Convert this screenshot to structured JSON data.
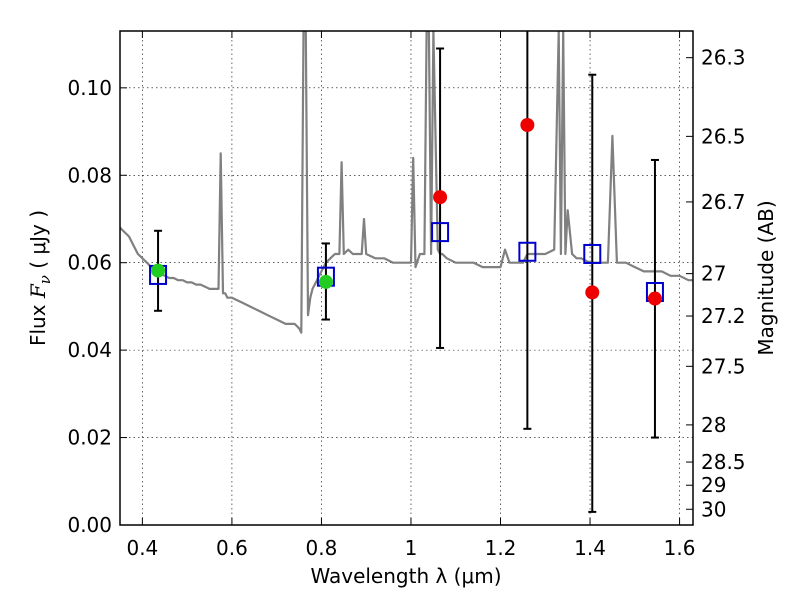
{
  "chart_data": {
    "type": "scatter",
    "xlabel": "Wavelength  λ (μm)",
    "ylabel_prefix": "Flux ",
    "ylabel_var": "F",
    "ylabel_sub": "ν",
    "ylabel_suffix": "  ( μJy )",
    "y2label": "Magnitude (AB)",
    "xlim": [
      0.35,
      1.63
    ],
    "ylim": [
      0.0,
      0.113
    ],
    "grid": true,
    "x_ticks": [
      0.4,
      0.6,
      0.8,
      1.0,
      1.2,
      1.4,
      1.6
    ],
    "x_tick_labels": [
      "0.4",
      "0.6",
      "0.8",
      "1",
      "1.2",
      "1.4",
      "1.6"
    ],
    "y_ticks": [
      0.0,
      0.02,
      0.04,
      0.06,
      0.08,
      0.1
    ],
    "y_tick_labels": [
      "0.00",
      "0.02",
      "0.04",
      "0.06",
      "0.08",
      "0.10"
    ],
    "y2_ticks": [
      {
        "flux": 0.1069,
        "label": "26.3"
      },
      {
        "flux": 0.0889,
        "label": "26.5"
      },
      {
        "flux": 0.0739,
        "label": "26.7"
      },
      {
        "flux": 0.0575,
        "label": "27"
      },
      {
        "flux": 0.0478,
        "label": "27.2"
      },
      {
        "flux": 0.0363,
        "label": "27.5"
      },
      {
        "flux": 0.0229,
        "label": "28"
      },
      {
        "flux": 0.0144,
        "label": "28.5"
      },
      {
        "flux": 0.0091,
        "label": "29"
      },
      {
        "flux": 0.0036,
        "label": "30"
      }
    ],
    "colors": {
      "spectrum": "#808080",
      "model_box": "#0000cc",
      "green_point": "#22cc22",
      "red_point": "#ee0000",
      "errorbar": "#000000"
    },
    "series": [
      {
        "kind": "spectrum",
        "x": [
          0.35,
          0.36,
          0.37,
          0.38,
          0.39,
          0.4,
          0.41,
          0.42,
          0.43,
          0.44,
          0.45,
          0.46,
          0.47,
          0.48,
          0.49,
          0.5,
          0.51,
          0.52,
          0.53,
          0.54,
          0.55,
          0.56,
          0.57,
          0.575,
          0.58,
          0.585,
          0.59,
          0.6,
          0.62,
          0.64,
          0.66,
          0.68,
          0.7,
          0.72,
          0.74,
          0.75,
          0.755,
          0.76,
          0.765,
          0.77,
          0.775,
          0.78,
          0.785,
          0.79,
          0.8,
          0.81,
          0.82,
          0.83,
          0.84,
          0.845,
          0.85,
          0.86,
          0.87,
          0.88,
          0.89,
          0.895,
          0.9,
          0.92,
          0.94,
          0.96,
          0.98,
          1.0,
          1.005,
          1.01,
          1.02,
          1.03,
          1.035,
          1.04,
          1.045,
          1.05,
          1.06,
          1.065,
          1.07,
          1.08,
          1.1,
          1.12,
          1.14,
          1.16,
          1.18,
          1.2,
          1.21,
          1.22,
          1.24,
          1.25,
          1.26,
          1.28,
          1.3,
          1.32,
          1.33,
          1.335,
          1.34,
          1.345,
          1.35,
          1.36,
          1.37,
          1.38,
          1.4,
          1.42,
          1.44,
          1.45,
          1.46,
          1.48,
          1.5,
          1.52,
          1.54,
          1.56,
          1.58,
          1.6,
          1.62,
          1.63
        ],
        "y": [
          0.068,
          0.067,
          0.066,
          0.064,
          0.062,
          0.061,
          0.06,
          0.059,
          0.058,
          0.0575,
          0.057,
          0.0565,
          0.0565,
          0.056,
          0.056,
          0.0555,
          0.0555,
          0.055,
          0.055,
          0.0545,
          0.054,
          0.054,
          0.054,
          0.085,
          0.053,
          0.053,
          0.052,
          0.052,
          0.051,
          0.05,
          0.049,
          0.048,
          0.047,
          0.046,
          0.046,
          0.045,
          0.044,
          0.113,
          0.113,
          0.048,
          0.052,
          0.054,
          0.055,
          0.056,
          0.058,
          0.06,
          0.061,
          0.062,
          0.062,
          0.083,
          0.062,
          0.063,
          0.062,
          0.062,
          0.062,
          0.07,
          0.062,
          0.061,
          0.061,
          0.06,
          0.06,
          0.06,
          0.084,
          0.059,
          0.062,
          0.062,
          0.113,
          0.113,
          0.062,
          0.113,
          0.063,
          0.062,
          0.062,
          0.061,
          0.06,
          0.06,
          0.06,
          0.059,
          0.059,
          0.059,
          0.063,
          0.06,
          0.06,
          0.06,
          0.062,
          0.062,
          0.062,
          0.063,
          0.113,
          0.062,
          0.113,
          0.062,
          0.072,
          0.062,
          0.061,
          0.061,
          0.06,
          0.06,
          0.06,
          0.089,
          0.06,
          0.06,
          0.059,
          0.058,
          0.058,
          0.058,
          0.057,
          0.057,
          0.056,
          0.056
        ]
      },
      {
        "kind": "model_box",
        "x": [
          0.435,
          0.81,
          1.065,
          1.26,
          1.405,
          1.545
        ],
        "y": [
          0.0572,
          0.0568,
          0.067,
          0.0625,
          0.062,
          0.0533
        ]
      },
      {
        "kind": "errorbar",
        "x": [
          0.435,
          0.81,
          1.065,
          1.26,
          1.405,
          1.545
        ],
        "ylow": [
          0.049,
          0.047,
          0.0405,
          0.022,
          0.003,
          0.02
        ],
        "yhigh": [
          0.0673,
          0.0644,
          0.109,
          0.115,
          0.103,
          0.0835
        ]
      },
      {
        "kind": "green_point",
        "x": [
          0.435,
          0.81
        ],
        "y": [
          0.0582,
          0.0556
        ]
      },
      {
        "kind": "red_point",
        "x": [
          1.065,
          1.26,
          1.405,
          1.545
        ],
        "y": [
          0.075,
          0.0915,
          0.0532,
          0.0518
        ]
      }
    ]
  }
}
